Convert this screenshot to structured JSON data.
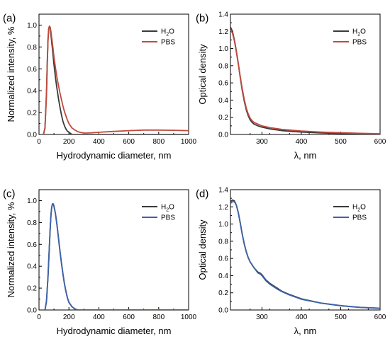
{
  "chart_data": [
    {
      "panel": "(a)",
      "type": "line",
      "xlabel": "Hydrodynamic diameter, nm",
      "ylabel": "Normalized intensity, %",
      "xlim": [
        0,
        1000
      ],
      "ylim": [
        0,
        1.1
      ],
      "xticks": [
        0,
        200,
        400,
        600,
        800,
        1000
      ],
      "xtick_labels": [
        "0",
        "200",
        "400",
        "600",
        "800",
        "1000"
      ],
      "yticks": [
        0.0,
        0.2,
        0.4,
        0.6,
        0.8,
        1.0
      ],
      "ytick_labels": [
        "0.0",
        "0.2",
        "0.4",
        "0.6",
        "0.8",
        "1.0"
      ],
      "legend": "top-right",
      "grid": false,
      "series": [
        {
          "name": "H2O",
          "legend_main": "H",
          "legend_sub": "2",
          "legend_tail": "O",
          "color": "#3a3a3a",
          "x": [
            30,
            40,
            50,
            55,
            60,
            65,
            70,
            75,
            80,
            90,
            100,
            110,
            120,
            130,
            140,
            150,
            160,
            170,
            180,
            190,
            200,
            210,
            220,
            240,
            260,
            280,
            300,
            350,
            400,
            600,
            800,
            1000
          ],
          "y": [
            0.0,
            0.06,
            0.38,
            0.65,
            0.87,
            0.97,
            0.99,
            0.97,
            0.91,
            0.78,
            0.64,
            0.52,
            0.42,
            0.33,
            0.25,
            0.18,
            0.12,
            0.08,
            0.05,
            0.03,
            0.02,
            0.01,
            0.0,
            0.0,
            0.0,
            0.0,
            0.0,
            0.0,
            0.0,
            0.0,
            0.0,
            0.0
          ]
        },
        {
          "name": "PBS",
          "color": "#c04a3c",
          "x": [
            30,
            40,
            50,
            55,
            60,
            65,
            70,
            75,
            80,
            90,
            100,
            110,
            120,
            130,
            140,
            150,
            160,
            170,
            180,
            190,
            200,
            220,
            240,
            260,
            280,
            300,
            320,
            350,
            400,
            500,
            600,
            700,
            800,
            900,
            1000
          ],
          "y": [
            0.0,
            0.06,
            0.36,
            0.62,
            0.85,
            0.96,
            0.99,
            0.98,
            0.94,
            0.83,
            0.71,
            0.61,
            0.52,
            0.45,
            0.38,
            0.32,
            0.26,
            0.21,
            0.17,
            0.13,
            0.1,
            0.06,
            0.04,
            0.025,
            0.018,
            0.014,
            0.013,
            0.015,
            0.02,
            0.028,
            0.035,
            0.04,
            0.04,
            0.038,
            0.035
          ]
        }
      ]
    },
    {
      "panel": "(b)",
      "type": "line",
      "xlabel": "λ, nm",
      "ylabel": "Optical density",
      "xlim": [
        220,
        600
      ],
      "ylim": [
        0,
        1.4
      ],
      "xticks": [
        300,
        400,
        500,
        600
      ],
      "xtick_labels": [
        "300",
        "400",
        "500",
        "600"
      ],
      "yticks": [
        0.0,
        0.2,
        0.4,
        0.6,
        0.8,
        1.0,
        1.2,
        1.4
      ],
      "ytick_labels": [
        "0.0",
        "0.2",
        "0.4",
        "0.6",
        "0.8",
        "1.0",
        "1.2",
        "1.4"
      ],
      "legend": "top-right",
      "grid": false,
      "series": [
        {
          "name": "H2O",
          "legend_main": "H",
          "legend_sub": "2",
          "legend_tail": "O",
          "color": "#3a3a3a",
          "x": [
            220,
            225,
            230,
            235,
            240,
            245,
            250,
            255,
            260,
            265,
            270,
            275,
            280,
            290,
            300,
            320,
            350,
            400,
            450,
            500,
            550,
            600
          ],
          "y": [
            1.25,
            1.2,
            1.1,
            0.97,
            0.82,
            0.66,
            0.51,
            0.39,
            0.29,
            0.22,
            0.17,
            0.14,
            0.12,
            0.1,
            0.085,
            0.065,
            0.045,
            0.028,
            0.018,
            0.012,
            0.008,
            0.005
          ]
        },
        {
          "name": "PBS",
          "color": "#c04a3c",
          "x": [
            220,
            225,
            230,
            235,
            240,
            245,
            250,
            255,
            260,
            265,
            270,
            275,
            280,
            290,
            300,
            320,
            350,
            400,
            450,
            500,
            550,
            600
          ],
          "y": [
            1.22,
            1.18,
            1.09,
            0.96,
            0.82,
            0.67,
            0.53,
            0.41,
            0.31,
            0.24,
            0.19,
            0.16,
            0.14,
            0.12,
            0.1,
            0.08,
            0.06,
            0.04,
            0.028,
            0.02,
            0.013,
            0.008
          ]
        }
      ]
    },
    {
      "panel": "(c)",
      "type": "line",
      "xlabel": "Hydrodynamic diameter, nm",
      "ylabel": "Normalized intensity, %",
      "xlim": [
        0,
        1000
      ],
      "ylim": [
        0,
        1.1
      ],
      "xticks": [
        0,
        200,
        400,
        600,
        800,
        1000
      ],
      "xtick_labels": [
        "0",
        "200",
        "400",
        "600",
        "800",
        "1000"
      ],
      "yticks": [
        0.0,
        0.2,
        0.4,
        0.6,
        0.8,
        1.0
      ],
      "ytick_labels": [
        "0.0",
        "0.2",
        "0.4",
        "0.6",
        "0.8",
        "1.0"
      ],
      "legend": "top-right",
      "grid": false,
      "series": [
        {
          "name": "H2O",
          "legend_main": "H",
          "legend_sub": "2",
          "legend_tail": "O",
          "color": "#3a3a3a",
          "x": [
            40,
            50,
            60,
            70,
            75,
            80,
            85,
            90,
            95,
            100,
            110,
            120,
            130,
            140,
            150,
            160,
            170,
            180,
            190,
            200,
            220,
            240,
            260,
            280,
            300,
            400,
            600,
            800,
            1000
          ],
          "y": [
            0.0,
            0.08,
            0.3,
            0.6,
            0.75,
            0.87,
            0.94,
            0.97,
            0.97,
            0.95,
            0.88,
            0.78,
            0.66,
            0.54,
            0.43,
            0.33,
            0.24,
            0.17,
            0.11,
            0.07,
            0.03,
            0.01,
            0.0,
            0.0,
            0.0,
            0.0,
            0.0,
            0.0,
            0.0
          ]
        },
        {
          "name": "PBS",
          "color": "#3d63a8",
          "x": [
            40,
            50,
            60,
            70,
            75,
            80,
            85,
            90,
            95,
            100,
            110,
            120,
            130,
            140,
            150,
            160,
            170,
            180,
            190,
            200,
            220,
            240,
            260,
            280,
            300,
            400,
            600,
            800,
            1000
          ],
          "y": [
            0.0,
            0.08,
            0.3,
            0.6,
            0.75,
            0.87,
            0.94,
            0.97,
            0.97,
            0.95,
            0.88,
            0.78,
            0.66,
            0.54,
            0.43,
            0.33,
            0.24,
            0.17,
            0.11,
            0.07,
            0.03,
            0.01,
            0.0,
            0.0,
            0.0,
            0.0,
            0.0,
            0.0,
            0.0
          ]
        }
      ]
    },
    {
      "panel": "(d)",
      "type": "line",
      "xlabel": "λ, nm",
      "ylabel": "Optical density",
      "xlim": [
        220,
        600
      ],
      "ylim": [
        0,
        1.4
      ],
      "xticks": [
        300,
        400,
        500,
        600
      ],
      "xtick_labels": [
        "300",
        "400",
        "500",
        "600"
      ],
      "yticks": [
        0.0,
        0.2,
        0.4,
        0.6,
        0.8,
        1.0,
        1.2,
        1.4
      ],
      "ytick_labels": [
        "0.0",
        "0.2",
        "0.4",
        "0.6",
        "0.8",
        "1.0",
        "1.2",
        "1.4"
      ],
      "legend": "top-right",
      "grid": false,
      "series": [
        {
          "name": "H2O",
          "legend_main": "H",
          "legend_sub": "2",
          "legend_tail": "O",
          "color": "#3a3a3a",
          "x": [
            220,
            225,
            230,
            235,
            240,
            245,
            250,
            255,
            260,
            265,
            270,
            280,
            290,
            295,
            300,
            305,
            310,
            320,
            330,
            340,
            350,
            370,
            400,
            450,
            500,
            550,
            600
          ],
          "y": [
            1.26,
            1.28,
            1.27,
            1.22,
            1.13,
            1.01,
            0.88,
            0.77,
            0.68,
            0.61,
            0.56,
            0.49,
            0.44,
            0.43,
            0.41,
            0.38,
            0.35,
            0.31,
            0.28,
            0.25,
            0.22,
            0.18,
            0.13,
            0.08,
            0.05,
            0.03,
            0.02
          ]
        },
        {
          "name": "PBS",
          "color": "#3d63a8",
          "x": [
            220,
            225,
            230,
            235,
            240,
            245,
            250,
            255,
            260,
            265,
            270,
            280,
            290,
            295,
            300,
            305,
            310,
            320,
            330,
            340,
            350,
            370,
            400,
            450,
            500,
            550,
            600
          ],
          "y": [
            1.24,
            1.26,
            1.26,
            1.22,
            1.13,
            1.01,
            0.88,
            0.77,
            0.68,
            0.61,
            0.56,
            0.49,
            0.43,
            0.42,
            0.4,
            0.37,
            0.34,
            0.3,
            0.27,
            0.24,
            0.215,
            0.175,
            0.125,
            0.08,
            0.05,
            0.03,
            0.02
          ]
        }
      ]
    }
  ]
}
